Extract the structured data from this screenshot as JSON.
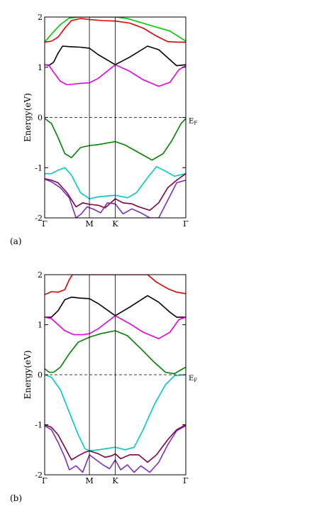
{
  "chart_data": [
    {
      "type": "line",
      "panel_label": "(a)",
      "ylabel": "Energy(eV)",
      "ylim": [
        -2,
        2
      ],
      "y_ticks": [
        "-2",
        "-1",
        "0",
        "1",
        "2"
      ],
      "k_labels": [
        "Γ",
        "M",
        "K",
        "Γ"
      ],
      "k_positions": [
        0,
        1.0,
        1.577,
        3.155
      ],
      "fermi_level": 0,
      "fermi_label": "E",
      "fermi_label_sub": "F",
      "grid": false,
      "series": [
        {
          "color": "#00c800",
          "points": [
            [
              0,
              1.5
            ],
            [
              0.15,
              1.66
            ],
            [
              0.35,
              1.85
            ],
            [
              0.55,
              1.98
            ],
            [
              0.8,
              2.0
            ],
            [
              1.577,
              2.0
            ],
            [
              1.85,
              1.97
            ],
            [
              2.3,
              1.85
            ],
            [
              2.8,
              1.72
            ],
            [
              3.155,
              1.52
            ]
          ]
        },
        {
          "color": "#e00000",
          "points": [
            [
              0,
              1.5
            ],
            [
              0.15,
              1.52
            ],
            [
              0.3,
              1.6
            ],
            [
              0.45,
              1.78
            ],
            [
              0.6,
              1.93
            ],
            [
              0.8,
              1.97
            ],
            [
              1.0,
              1.95
            ],
            [
              1.3,
              1.93
            ],
            [
              1.577,
              1.92
            ],
            [
              1.9,
              1.88
            ],
            [
              2.2,
              1.78
            ],
            [
              2.5,
              1.62
            ],
            [
              2.75,
              1.51
            ],
            [
              3.0,
              1.5
            ],
            [
              3.155,
              1.5
            ]
          ]
        },
        {
          "color": "#000000",
          "points": [
            [
              0,
              1.05
            ],
            [
              0.1,
              1.04
            ],
            [
              0.2,
              1.1
            ],
            [
              0.3,
              1.28
            ],
            [
              0.4,
              1.42
            ],
            [
              0.55,
              1.41
            ],
            [
              0.8,
              1.4
            ],
            [
              1.0,
              1.38
            ],
            [
              1.2,
              1.25
            ],
            [
              1.577,
              1.05
            ],
            [
              1.9,
              1.2
            ],
            [
              2.3,
              1.42
            ],
            [
              2.55,
              1.35
            ],
            [
              2.8,
              1.15
            ],
            [
              2.95,
              1.03
            ],
            [
              3.155,
              1.05
            ]
          ]
        },
        {
          "color": "#e600e6",
          "points": [
            [
              0,
              1.05
            ],
            [
              0.1,
              1.03
            ],
            [
              0.2,
              0.9
            ],
            [
              0.35,
              0.72
            ],
            [
              0.5,
              0.65
            ],
            [
              0.8,
              0.68
            ],
            [
              1.0,
              0.69
            ],
            [
              1.2,
              0.78
            ],
            [
              1.577,
              1.05
            ],
            [
              1.9,
              0.92
            ],
            [
              2.2,
              0.75
            ],
            [
              2.55,
              0.62
            ],
            [
              2.8,
              0.7
            ],
            [
              3.0,
              0.95
            ],
            [
              3.155,
              1.03
            ]
          ]
        },
        {
          "color": "#008000",
          "points": [
            [
              0,
              -0.02
            ],
            [
              0.15,
              -0.12
            ],
            [
              0.3,
              -0.4
            ],
            [
              0.45,
              -0.72
            ],
            [
              0.6,
              -0.8
            ],
            [
              0.8,
              -0.6
            ],
            [
              1.0,
              -0.56
            ],
            [
              1.2,
              -0.54
            ],
            [
              1.577,
              -0.48
            ],
            [
              1.8,
              -0.55
            ],
            [
              2.1,
              -0.7
            ],
            [
              2.4,
              -0.85
            ],
            [
              2.65,
              -0.72
            ],
            [
              2.85,
              -0.45
            ],
            [
              3.05,
              -0.12
            ],
            [
              3.155,
              -0.02
            ]
          ]
        },
        {
          "color": "#00c8c8",
          "points": [
            [
              0,
              -1.12
            ],
            [
              0.15,
              -1.12
            ],
            [
              0.3,
              -1.05
            ],
            [
              0.45,
              -1.0
            ],
            [
              0.6,
              -1.15
            ],
            [
              0.8,
              -1.5
            ],
            [
              1.0,
              -1.62
            ],
            [
              1.2,
              -1.58
            ],
            [
              1.577,
              -1.55
            ],
            [
              1.85,
              -1.6
            ],
            [
              2.05,
              -1.5
            ],
            [
              2.3,
              -1.2
            ],
            [
              2.5,
              -0.98
            ],
            [
              2.7,
              -1.07
            ],
            [
              2.9,
              -1.17
            ],
            [
              3.155,
              -1.12
            ]
          ]
        },
        {
          "color": "#800040",
          "points": [
            [
              0,
              -1.22
            ],
            [
              0.15,
              -1.25
            ],
            [
              0.3,
              -1.3
            ],
            [
              0.5,
              -1.5
            ],
            [
              0.7,
              -1.78
            ],
            [
              0.85,
              -1.7
            ],
            [
              1.0,
              -1.73
            ],
            [
              1.2,
              -1.75
            ],
            [
              1.35,
              -1.8
            ],
            [
              1.577,
              -1.62
            ],
            [
              1.75,
              -1.7
            ],
            [
              1.95,
              -1.72
            ],
            [
              2.1,
              -1.78
            ],
            [
              2.35,
              -1.85
            ],
            [
              2.55,
              -1.7
            ],
            [
              2.75,
              -1.4
            ],
            [
              2.95,
              -1.25
            ],
            [
              3.155,
              -1.12
            ]
          ]
        },
        {
          "color": "#7b2fbe",
          "points": [
            [
              0,
              -1.23
            ],
            [
              0.15,
              -1.28
            ],
            [
              0.35,
              -1.4
            ],
            [
              0.55,
              -1.6
            ],
            [
              0.7,
              -2.0
            ],
            [
              0.82,
              -1.92
            ],
            [
              0.95,
              -1.78
            ],
            [
              1.1,
              -1.83
            ],
            [
              1.25,
              -1.9
            ],
            [
              1.4,
              -1.7
            ],
            [
              1.577,
              -1.72
            ],
            [
              1.75,
              -1.92
            ],
            [
              1.95,
              -1.82
            ],
            [
              2.15,
              -1.9
            ],
            [
              2.35,
              -2.0
            ],
            [
              2.55,
              -2.0
            ],
            [
              2.75,
              -1.65
            ],
            [
              2.95,
              -1.3
            ],
            [
              3.155,
              -1.25
            ]
          ]
        }
      ]
    },
    {
      "type": "line",
      "panel_label": "(b)",
      "ylabel": "Energy(eV)",
      "ylim": [
        -2,
        2
      ],
      "y_ticks": [
        "-2",
        "-1",
        "0",
        "1",
        "2"
      ],
      "k_labels": [
        "Γ",
        "M",
        "K",
        "Γ"
      ],
      "k_positions": [
        0,
        1.0,
        1.577,
        3.155
      ],
      "fermi_level": 0,
      "fermi_label": "E",
      "fermi_label_sub": "F",
      "grid": false,
      "series": [
        {
          "color": "#e00000",
          "points": [
            [
              0,
              1.6
            ],
            [
              0.15,
              1.66
            ],
            [
              0.3,
              1.65
            ],
            [
              0.45,
              1.7
            ],
            [
              0.55,
              1.9
            ],
            [
              0.62,
              2.0
            ],
            [
              2.3,
              2.0
            ],
            [
              2.5,
              1.85
            ],
            [
              2.75,
              1.72
            ],
            [
              2.95,
              1.65
            ],
            [
              3.155,
              1.62
            ]
          ]
        },
        {
          "color": "#000000",
          "points": [
            [
              0,
              1.15
            ],
            [
              0.15,
              1.15
            ],
            [
              0.3,
              1.28
            ],
            [
              0.45,
              1.5
            ],
            [
              0.6,
              1.55
            ],
            [
              0.8,
              1.53
            ],
            [
              1.0,
              1.52
            ],
            [
              1.2,
              1.42
            ],
            [
              1.577,
              1.18
            ],
            [
              1.9,
              1.35
            ],
            [
              2.3,
              1.58
            ],
            [
              2.55,
              1.45
            ],
            [
              2.8,
              1.25
            ],
            [
              2.95,
              1.15
            ],
            [
              3.155,
              1.15
            ]
          ]
        },
        {
          "color": "#e600e6",
          "points": [
            [
              0,
              1.15
            ],
            [
              0.15,
              1.12
            ],
            [
              0.3,
              1.0
            ],
            [
              0.45,
              0.88
            ],
            [
              0.65,
              0.8
            ],
            [
              0.85,
              0.8
            ],
            [
              1.0,
              0.82
            ],
            [
              1.2,
              0.92
            ],
            [
              1.577,
              1.18
            ],
            [
              1.9,
              1.02
            ],
            [
              2.2,
              0.85
            ],
            [
              2.55,
              0.72
            ],
            [
              2.8,
              0.85
            ],
            [
              3.0,
              1.1
            ],
            [
              3.155,
              1.15
            ]
          ]
        },
        {
          "color": "#008000",
          "points": [
            [
              0,
              0.12
            ],
            [
              0.1,
              0.05
            ],
            [
              0.2,
              0.05
            ],
            [
              0.35,
              0.15
            ],
            [
              0.55,
              0.42
            ],
            [
              0.75,
              0.65
            ],
            [
              1.0,
              0.75
            ],
            [
              1.25,
              0.82
            ],
            [
              1.577,
              0.88
            ],
            [
              1.85,
              0.78
            ],
            [
              2.15,
              0.52
            ],
            [
              2.45,
              0.25
            ],
            [
              2.7,
              0.05
            ],
            [
              2.9,
              0.02
            ],
            [
              3.05,
              0.1
            ],
            [
              3.155,
              0.15
            ]
          ]
        },
        {
          "color": "#00c8c8",
          "points": [
            [
              0,
              0.0
            ],
            [
              0.15,
              -0.05
            ],
            [
              0.35,
              -0.3
            ],
            [
              0.55,
              -0.75
            ],
            [
              0.75,
              -1.2
            ],
            [
              0.9,
              -1.48
            ],
            [
              1.0,
              -1.52
            ],
            [
              1.2,
              -1.5
            ],
            [
              1.577,
              -1.45
            ],
            [
              1.8,
              -1.5
            ],
            [
              2.0,
              -1.45
            ],
            [
              2.2,
              -1.1
            ],
            [
              2.45,
              -0.6
            ],
            [
              2.7,
              -0.2
            ],
            [
              2.9,
              -0.02
            ],
            [
              3.155,
              0.0
            ]
          ]
        },
        {
          "color": "#800040",
          "points": [
            [
              0,
              -1.0
            ],
            [
              0.15,
              -1.05
            ],
            [
              0.3,
              -1.2
            ],
            [
              0.45,
              -1.45
            ],
            [
              0.6,
              -1.7
            ],
            [
              0.75,
              -1.62
            ],
            [
              0.9,
              -1.55
            ],
            [
              1.0,
              -1.52
            ],
            [
              1.2,
              -1.58
            ],
            [
              1.35,
              -1.65
            ],
            [
              1.5,
              -1.62
            ],
            [
              1.577,
              -1.58
            ],
            [
              1.7,
              -1.68
            ],
            [
              1.9,
              -1.6
            ],
            [
              2.1,
              -1.6
            ],
            [
              2.3,
              -1.75
            ],
            [
              2.5,
              -1.6
            ],
            [
              2.75,
              -1.3
            ],
            [
              2.95,
              -1.1
            ],
            [
              3.155,
              -1.0
            ]
          ]
        },
        {
          "color": "#7b2fbe",
          "points": [
            [
              0,
              -1.02
            ],
            [
              0.15,
              -1.1
            ],
            [
              0.3,
              -1.35
            ],
            [
              0.45,
              -1.65
            ],
            [
              0.55,
              -1.9
            ],
            [
              0.7,
              -1.82
            ],
            [
              0.85,
              -1.95
            ],
            [
              1.0,
              -1.6
            ],
            [
              1.15,
              -1.7
            ],
            [
              1.3,
              -1.8
            ],
            [
              1.45,
              -1.88
            ],
            [
              1.577,
              -1.7
            ],
            [
              1.7,
              -1.9
            ],
            [
              1.85,
              -1.8
            ],
            [
              2.0,
              -1.95
            ],
            [
              2.15,
              -1.82
            ],
            [
              2.35,
              -1.95
            ],
            [
              2.55,
              -1.75
            ],
            [
              2.75,
              -1.4
            ],
            [
              2.95,
              -1.12
            ],
            [
              3.155,
              -1.02
            ]
          ]
        }
      ]
    }
  ]
}
